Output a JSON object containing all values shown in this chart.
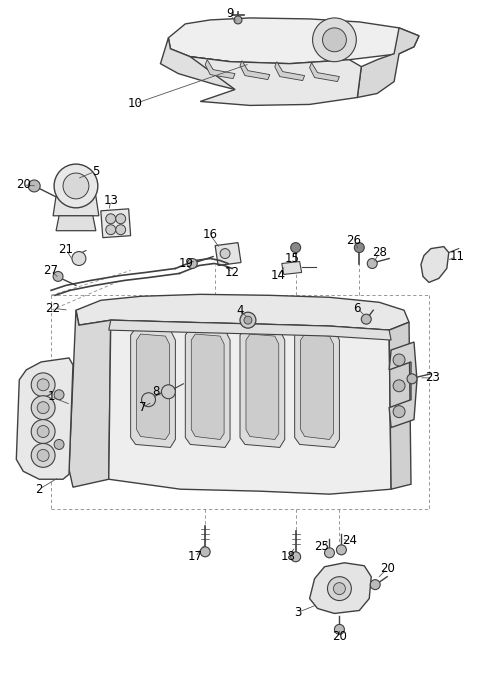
{
  "bg_color": "#ffffff",
  "lc": "#404040",
  "lc2": "#666666",
  "fc_light": "#f5f5f5",
  "fc_mid": "#e8e8e8",
  "fc_dark": "#d8d8d8",
  "fig_w": 4.8,
  "fig_h": 7.0,
  "dpi": 100
}
